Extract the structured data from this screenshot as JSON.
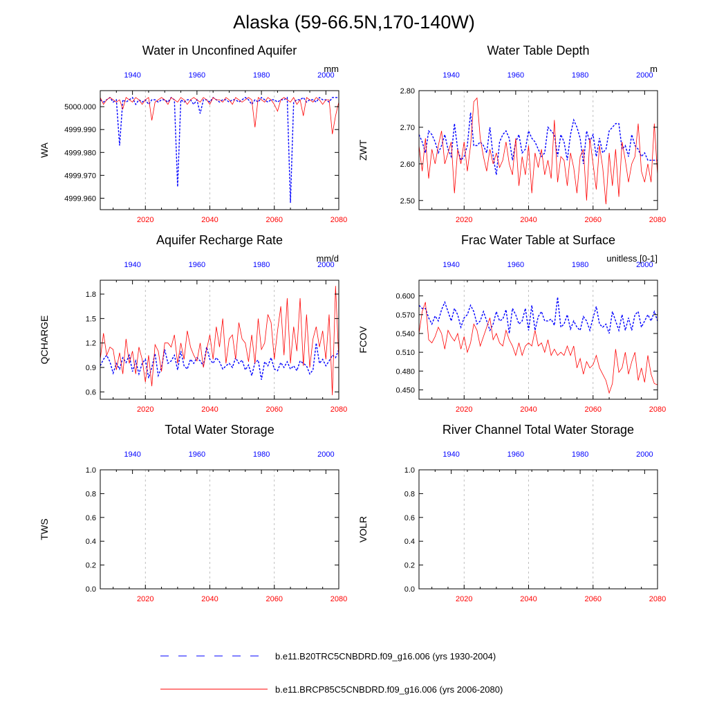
{
  "figure": {
    "title": "Alaska (59-66.5N,170-140W)",
    "colors": {
      "historical": "#0000ff",
      "future": "#ff0000",
      "axis": "#000000"
    }
  },
  "legend": [
    {
      "label": "b.e11.B20TRC5CNBDRD.f09_g16.006 (yrs 1930-2004)",
      "color": "#0000ff",
      "style": "dashed"
    },
    {
      "label": "b.e11.BRCP85C5CNBDRD.f09_g16.006 (yrs 2006-2080)",
      "color": "#ff0000",
      "style": "solid"
    }
  ],
  "chart_data": [
    {
      "type": "line",
      "title": "Water in Unconfined Aquifer",
      "ylabel": "WA",
      "units": "mm",
      "ylim": [
        4999.955,
        5000.007
      ],
      "yticks": [
        "4999.960",
        "4999.970",
        "4999.980",
        "4999.990",
        "5000.000"
      ],
      "x_bottom": {
        "label_values": [
          2020,
          2040,
          2060,
          2080
        ],
        "range": [
          2006,
          2080
        ]
      },
      "x_top": {
        "label_values": [
          1940,
          1960,
          1980,
          2000
        ],
        "range": [
          1930,
          2004
        ]
      },
      "series": [
        {
          "name": "historical",
          "x_start": 1930,
          "values": [
            5000.003,
            5000.002,
            5000.003,
            5000.004,
            5000.002,
            5000.003,
            4999.983,
            5000.003,
            5000.002,
            5000.003,
            5000.004,
            5000.001,
            5000.003,
            5000.002,
            5000.003,
            5000.001,
            5000.003,
            5000.003,
            5000.002,
            5000.003,
            5000.003,
            5000.002,
            5000.004,
            5000.003,
            4999.965,
            5000.003,
            5000.002,
            5000.003,
            5000.003,
            5000.001,
            5000.003,
            4999.997,
            5000.003,
            5000.003,
            5000.002,
            5000.004,
            5000.003,
            5000.002,
            5000.003,
            5000.003,
            5000.002,
            5000.003,
            5000.003,
            5000.002,
            5000.003,
            5000.004,
            5000.003,
            5000.001,
            5000.003,
            5000.002,
            5000.004,
            5000.003,
            5000.002,
            5000.003,
            5000.003,
            5000.002,
            5000.003,
            5000.003,
            5000.004,
            4999.958,
            5000.002,
            5000.003,
            5000.003,
            5000.004,
            5000.002,
            5000.003,
            5000.003,
            5000.002,
            5000.004,
            5000.003,
            5000.003,
            5000.002,
            5000.004,
            5000.004,
            5000.004
          ]
        },
        {
          "name": "future",
          "x_start": 2006,
          "values": [
            5000.004,
            5000.001,
            5000.003,
            5000.004,
            5000.003,
            5000.002,
            5000.003,
            4999.999,
            5000.004,
            5000.003,
            5000.002,
            5000.004,
            5000.003,
            5000.001,
            5000.003,
            5000.004,
            4999.994,
            5000.002,
            5000.003,
            5000.004,
            5000.003,
            5000.001,
            5000.004,
            5000.003,
            5000.002,
            5000.004,
            5000.003,
            5000.001,
            5000.003,
            5000.004,
            5000.003,
            5000.002,
            5000.004,
            5000.003,
            5000.001,
            5000.004,
            5000.003,
            5000.003,
            5000.002,
            5000.004,
            5000.003,
            5000.001,
            5000.004,
            5000.003,
            5000.002,
            5000.003,
            5000.004,
            5000.003,
            4999.991,
            5000.004,
            5000.003,
            5000.002,
            5000.004,
            5000.003,
            5000.001,
            4999.998,
            5000.003,
            5000.004,
            5000.003,
            5000.002,
            5000.004,
            5000.001,
            5000.003,
            4999.996,
            5000.004,
            5000.003,
            5000.002,
            5000.004,
            5000.003,
            5000.001,
            5000.003,
            5000.003,
            4999.988,
            4999.996,
            5000.002
          ]
        }
      ]
    },
    {
      "type": "line",
      "title": "Water Table Depth",
      "ylabel": "ZWT",
      "units": "m",
      "ylim": [
        2.475,
        2.8
      ],
      "yticks": [
        "2.50",
        "2.60",
        "2.70",
        "2.80"
      ],
      "x_bottom": {
        "label_values": [
          2020,
          2040,
          2060,
          2080
        ],
        "range": [
          2006,
          2080
        ]
      },
      "x_top": {
        "label_values": [
          1940,
          1960,
          1980,
          2000
        ],
        "range": [
          1930,
          2004
        ]
      },
      "series": [
        {
          "name": "historical",
          "x_start": 1930,
          "values": [
            2.68,
            2.66,
            2.63,
            2.69,
            2.68,
            2.66,
            2.63,
            2.65,
            2.68,
            2.64,
            2.62,
            2.71,
            2.64,
            2.61,
            2.62,
            2.65,
            2.74,
            2.65,
            2.65,
            2.66,
            2.65,
            2.63,
            2.7,
            2.62,
            2.57,
            2.66,
            2.68,
            2.69,
            2.67,
            2.61,
            2.66,
            2.68,
            2.63,
            2.64,
            2.69,
            2.67,
            2.66,
            2.64,
            2.62,
            2.63,
            2.7,
            2.69,
            2.68,
            2.62,
            2.68,
            2.66,
            2.61,
            2.68,
            2.72,
            2.7,
            2.67,
            2.6,
            2.69,
            2.66,
            2.68,
            2.62,
            2.67,
            2.63,
            2.64,
            2.69,
            2.7,
            2.71,
            2.71,
            2.64,
            2.65,
            2.62,
            2.68,
            2.65,
            2.64,
            2.62,
            2.63,
            2.61,
            2.61,
            2.61,
            2.61
          ]
        },
        {
          "name": "future",
          "x_start": 2006,
          "values": [
            2.65,
            2.58,
            2.67,
            2.56,
            2.64,
            2.6,
            2.65,
            2.69,
            2.6,
            2.63,
            2.66,
            2.52,
            2.64,
            2.6,
            2.66,
            2.58,
            2.65,
            2.77,
            2.78,
            2.67,
            2.62,
            2.58,
            2.64,
            2.6,
            2.63,
            2.59,
            2.61,
            2.66,
            2.6,
            2.57,
            2.67,
            2.54,
            2.62,
            2.57,
            2.65,
            2.52,
            2.63,
            2.59,
            2.64,
            2.57,
            2.61,
            2.56,
            2.72,
            2.55,
            2.62,
            2.61,
            2.54,
            2.63,
            2.59,
            2.52,
            2.62,
            2.64,
            2.5,
            2.67,
            2.6,
            2.53,
            2.65,
            2.59,
            2.49,
            2.63,
            2.54,
            2.64,
            2.51,
            2.66,
            2.61,
            2.55,
            2.6,
            2.62,
            2.71,
            2.58,
            2.55,
            2.6,
            2.55,
            2.71,
            2.57
          ]
        }
      ]
    },
    {
      "type": "line",
      "title": "Aquifer Recharge Rate",
      "ylabel": "QCHARGE",
      "units": "mm/d",
      "ylim": [
        0.51,
        1.97
      ],
      "yticks": [
        "0.6",
        "0.9",
        "1.2",
        "1.5",
        "1.8"
      ],
      "x_bottom": {
        "label_values": [
          2020,
          2040,
          2060,
          2080
        ],
        "range": [
          2006,
          2080
        ]
      },
      "x_top": {
        "label_values": [
          1940,
          1960,
          1980,
          2000
        ],
        "range": [
          1930,
          2004
        ]
      },
      "series": [
        {
          "name": "historical",
          "x_start": 1930,
          "values": [
            0.92,
            1.0,
            1.05,
            0.97,
            0.83,
            0.95,
            0.88,
            1.02,
            0.96,
            1.05,
            0.85,
            0.98,
            0.82,
            0.95,
            1.0,
            0.77,
            0.9,
            1.07,
            0.8,
            0.9,
            1.12,
            0.95,
            0.98,
            1.05,
            0.87,
            1.1,
            0.92,
            0.88,
            1.0,
            0.95,
            1.02,
            0.98,
            0.92,
            1.15,
            1.0,
            0.95,
            1.02,
            0.97,
            0.88,
            0.92,
            0.95,
            0.9,
            1.02,
            0.95,
            0.99,
            0.87,
            0.93,
            0.8,
            0.96,
            0.99,
            0.75,
            0.97,
            0.92,
            1.02,
            0.88,
            0.86,
            0.96,
            0.9,
            0.97,
            0.88,
            0.92,
            0.86,
            0.98,
            0.95,
            0.92,
            0.82,
            0.87,
            1.2,
            0.95,
            1.0,
            0.92,
            0.98,
            1.05,
            1.02,
            1.12
          ]
        },
        {
          "name": "future",
          "x_start": 2006,
          "values": [
            1.0,
            1.32,
            1.05,
            1.15,
            1.12,
            0.87,
            1.08,
            0.82,
            1.25,
            0.95,
            1.1,
            0.82,
            1.15,
            1.0,
            0.72,
            1.05,
            0.67,
            1.18,
            1.1,
            0.85,
            1.2,
            1.2,
            1.15,
            1.3,
            0.95,
            1.2,
            1.0,
            1.35,
            1.15,
            1.05,
            0.98,
            1.2,
            0.9,
            1.12,
            1.3,
            1.0,
            1.4,
            1.15,
            1.5,
            0.95,
            1.25,
            1.3,
            1.0,
            1.45,
            1.25,
            1.2,
            0.97,
            1.3,
            0.95,
            1.5,
            1.12,
            1.2,
            1.55,
            1.45,
            1.0,
            1.35,
            1.65,
            1.05,
            1.75,
            0.95,
            1.4,
            1.1,
            1.75,
            0.92,
            1.55,
            0.9,
            1.25,
            1.4,
            1.15,
            1.35,
            1.0,
            1.55,
            0.56,
            1.9,
            1.0
          ]
        }
      ]
    },
    {
      "type": "line",
      "title": "Frac Water Table at Surface",
      "ylabel": "FCOV",
      "units": "unitless [0-1]",
      "ylim": [
        0.435,
        0.625
      ],
      "yticks": [
        "0.450",
        "0.480",
        "0.510",
        "0.540",
        "0.570",
        "0.600"
      ],
      "x_bottom": {
        "label_values": [
          2020,
          2040,
          2060,
          2080
        ],
        "range": [
          2006,
          2080
        ]
      },
      "x_top": {
        "label_values": [
          1940,
          1960,
          1980,
          2000
        ],
        "range": [
          1930,
          2004
        ]
      },
      "series": [
        {
          "name": "historical",
          "x_start": 1930,
          "values": [
            0.585,
            0.58,
            0.58,
            0.565,
            0.555,
            0.568,
            0.56,
            0.578,
            0.59,
            0.575,
            0.56,
            0.58,
            0.57,
            0.55,
            0.565,
            0.57,
            0.585,
            0.575,
            0.555,
            0.56,
            0.575,
            0.56,
            0.545,
            0.555,
            0.575,
            0.56,
            0.563,
            0.578,
            0.54,
            0.58,
            0.57,
            0.555,
            0.56,
            0.58,
            0.545,
            0.585,
            0.545,
            0.567,
            0.575,
            0.56,
            0.56,
            0.563,
            0.553,
            0.598,
            0.55,
            0.555,
            0.57,
            0.547,
            0.56,
            0.55,
            0.545,
            0.567,
            0.56,
            0.545,
            0.565,
            0.583,
            0.555,
            0.55,
            0.555,
            0.54,
            0.575,
            0.56,
            0.545,
            0.57,
            0.545,
            0.565,
            0.545,
            0.57,
            0.575,
            0.55,
            0.56,
            0.57,
            0.56,
            0.575,
            0.56
          ]
        },
        {
          "name": "future",
          "x_start": 2006,
          "values": [
            0.54,
            0.575,
            0.59,
            0.53,
            0.525,
            0.535,
            0.55,
            0.54,
            0.515,
            0.545,
            0.535,
            0.528,
            0.54,
            0.515,
            0.535,
            0.51,
            0.525,
            0.555,
            0.545,
            0.52,
            0.535,
            0.55,
            0.565,
            0.53,
            0.54,
            0.525,
            0.52,
            0.545,
            0.53,
            0.52,
            0.505,
            0.525,
            0.505,
            0.52,
            0.525,
            0.52,
            0.545,
            0.52,
            0.525,
            0.51,
            0.53,
            0.505,
            0.515,
            0.505,
            0.51,
            0.505,
            0.52,
            0.505,
            0.52,
            0.485,
            0.5,
            0.475,
            0.495,
            0.485,
            0.49,
            0.505,
            0.485,
            0.475,
            0.465,
            0.445,
            0.46,
            0.515,
            0.478,
            0.485,
            0.51,
            0.475,
            0.495,
            0.51,
            0.465,
            0.485,
            0.462,
            0.505,
            0.475,
            0.46,
            0.458
          ]
        }
      ]
    },
    {
      "type": "line",
      "title": "Total Water Storage",
      "ylabel": "TWS",
      "units": "",
      "ylim": [
        0,
        1
      ],
      "yticks": [
        "0.0",
        "0.2",
        "0.4",
        "0.6",
        "0.8",
        "1.0"
      ],
      "x_bottom": {
        "label_values": [
          2020,
          2040,
          2060,
          2080
        ],
        "range": [
          2006,
          2080
        ]
      },
      "x_top": {
        "label_values": [
          1940,
          1960,
          1980,
          2000
        ],
        "range": [
          1930,
          2004
        ]
      },
      "series": []
    },
    {
      "type": "line",
      "title": "River Channel Total Water Storage",
      "ylabel": "VOLR",
      "units": "",
      "ylim": [
        0,
        1
      ],
      "yticks": [
        "0.0",
        "0.2",
        "0.4",
        "0.6",
        "0.8",
        "1.0"
      ],
      "x_bottom": {
        "label_values": [
          2020,
          2040,
          2060,
          2080
        ],
        "range": [
          2006,
          2080
        ]
      },
      "x_top": {
        "label_values": [
          1940,
          1960,
          1980,
          2000
        ],
        "range": [
          1930,
          2004
        ]
      },
      "series": []
    }
  ]
}
